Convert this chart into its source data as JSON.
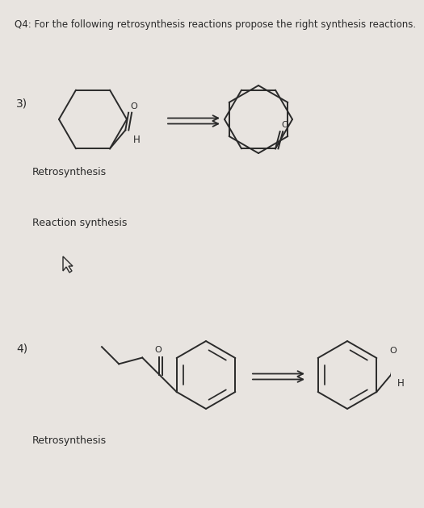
{
  "title": "Q4: For the following retrosynthesis reactions propose the right synthesis reactions.",
  "title_fontsize": 8.5,
  "bg_color": "#e8e4e0",
  "text_color": "#2a2a2a",
  "label3": "3)",
  "label4": "4)",
  "retrosynthesis_label": "Retrosynthesis",
  "reaction_synthesis_label": "Reaction synthesis",
  "lw": 1.4,
  "ring3_r": 0.52,
  "ring4_r": 0.5
}
